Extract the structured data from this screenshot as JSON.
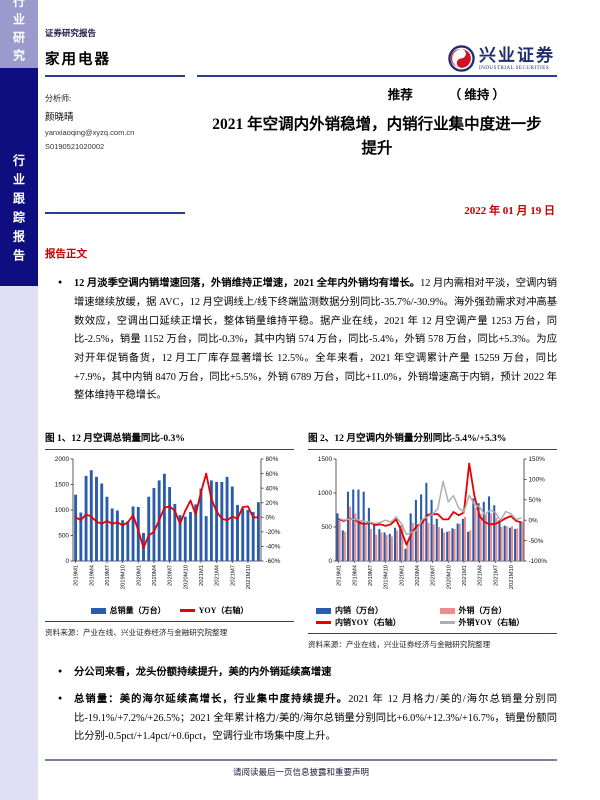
{
  "sidebar": {
    "top_label": "行业研究",
    "mid_label": "行业跟踪报告"
  },
  "header": {
    "report_type": "证券研究报告",
    "industry": "家用电器",
    "brand": {
      "name_cn": "兴业证券",
      "name_en": "INDUSTRIAL SECURITIES"
    },
    "rating": {
      "value": "推荐",
      "status": "（ 维持 ）"
    }
  },
  "analyst": {
    "label": "分析师:",
    "name": "颜晓晴",
    "email": "yanxiaoqing@xyzq.com.cn",
    "license": "S0190521020002"
  },
  "title": "2021 年空调内外销稳增，内销行业集中度进一步提升",
  "date": "2022 年 01 月 19 日",
  "section_label": "报告正文",
  "bullets_top": [
    {
      "lead": "12 月淡季空调内销增速回落，外销维持正增速，2021 全年内外销均有增长。",
      "rest": "12 月内需相对平淡，空调内销增速继续放缓，据 AVC，12 月空调线上/线下终端监测数据分别同比-35.7%/-30.9%。海外强劲需求对冲高基数效应，空调出口延续正增长，整体销量维持平稳。据产业在线，2021 年 12 月空调产量 1253 万台，同比-2.5%，销量 1152 万台，同比-0.3%，其中内销 574 万台，同比-5.4%，外销 578 万台，同比+5.3%。为应对开年促销备货，12 月工厂库存显著增长 12.5%。全年来看，2021 年空调累计产量 15259 万台，同比+7.9%，其中内销 8470 万台，同比+5.5%，外销 6789 万台，同比+11.0%，外销增速高于内销，预计 2022 年整体维持平稳增长。"
    }
  ],
  "bullets_bottom": [
    {
      "lead": "分公司来看，龙头份额持续提升，美的内外销延续高增速",
      "rest": ""
    },
    {
      "lead": "总销量：美的海尔延续高增长，行业集中度持续提升。",
      "rest": "2021 年 12 月格力/美的/海尔总销量分别同比-19.1%/+7.2%/+26.5%；2021 全年累计格力/美的/海尔总销量分别同比+6.0%/+12.3%/+16.7%，销量份额同比分别-0.5pct/+1.4pct/+0.6pct，空调行业市场集中度上升。"
    }
  ],
  "figures": [
    {
      "title": "图 1、12 月空调总销量同比-0.3%",
      "source": "资料来源：产业在线、兴业证券经济与金融研究院整理"
    },
    {
      "title": "图 2、12 月空调内外销量分别同比-5.4%/+5.3%",
      "source": "资料来源：产业在线，兴业证券经济与金融研究院整理"
    }
  ],
  "footer": "请阅读最后一页信息披露和重要声明",
  "colors": {
    "accent_navy": "#2b3990",
    "sidebar_dark": "#0e0e80",
    "sidebar_light": "#9a9bcc",
    "sidebar_pale": "#dfdff5",
    "red_text": "#c00000",
    "bar_blue": "#2a5caa",
    "bar_pink": "#ed8e8e",
    "line_red": "#e60000",
    "line_gray": "#aeaeae"
  },
  "chart_data": [
    {
      "type": "bar",
      "title": "图 1、12 月空调总销量同比-0.3%",
      "x": [
        "2019M1",
        "2019M2",
        "2019M3",
        "2019M4",
        "2019M5",
        "2019M6",
        "2019M7",
        "2019M8",
        "2019M9",
        "2019M10",
        "2019M11",
        "2019M12",
        "2020M1",
        "2020M2",
        "2020M3",
        "2020M4",
        "2020M5",
        "2020M6",
        "2020M7",
        "2020M8",
        "2020M9",
        "2020M10",
        "2020M11",
        "2020M12",
        "2021M1",
        "2021M2",
        "2021M3",
        "2021M4",
        "2021M5",
        "2021M6",
        "2021M7",
        "2021M8",
        "2021M9",
        "2021M10",
        "2021M11",
        "2021M12"
      ],
      "bar_series": [
        {
          "name": "总销量（万台）",
          "color": "#2a5caa",
          "axis": "left",
          "values": [
            1300,
            950,
            1670,
            1780,
            1650,
            1520,
            1260,
            1030,
            990,
            800,
            780,
            1070,
            1060,
            550,
            1260,
            1430,
            1580,
            1710,
            1450,
            1120,
            900,
            870,
            960,
            1110,
            1420,
            880,
            1580,
            1550,
            1550,
            1650,
            1460,
            1100,
            1030,
            1000,
            960,
            1152
          ]
        }
      ],
      "line_series": [
        {
          "name": "YOY（右轴）",
          "color": "#e60000",
          "axis": "right",
          "values": [
            0,
            -4,
            4,
            1,
            -6,
            -9,
            -5,
            -9,
            -7,
            -11,
            -7,
            3,
            -18,
            -42,
            -25,
            -20,
            -4,
            13,
            15,
            9,
            -9,
            9,
            23,
            4,
            34,
            60,
            25,
            8,
            -2,
            -4,
            1,
            -2,
            14,
            15,
            0,
            -0.3
          ]
        }
      ],
      "left_axis": {
        "min": 0,
        "max": 2000,
        "ticks": [
          0,
          500,
          1000,
          1500,
          2000
        ]
      },
      "right_axis": {
        "min": -60,
        "max": 80,
        "ticks": [
          80,
          60,
          40,
          20,
          0,
          -20,
          -40,
          -60
        ],
        "format": "percent"
      },
      "legend_position": "bottom",
      "grid": false
    },
    {
      "type": "bar",
      "title": "图 2、12 月空调内外销量分别同比-5.4%/+5.3%",
      "x": [
        "2019M1",
        "2019M2",
        "2019M3",
        "2019M4",
        "2019M5",
        "2019M6",
        "2019M7",
        "2019M8",
        "2019M9",
        "2019M10",
        "2019M11",
        "2019M12",
        "2020M1",
        "2020M2",
        "2020M3",
        "2020M4",
        "2020M5",
        "2020M6",
        "2020M7",
        "2020M8",
        "2020M9",
        "2020M10",
        "2020M11",
        "2020M12",
        "2021M1",
        "2021M2",
        "2021M3",
        "2021M4",
        "2021M5",
        "2021M6",
        "2021M7",
        "2021M8",
        "2021M9",
        "2021M10",
        "2021M11",
        "2021M12"
      ],
      "bar_series": [
        {
          "name": "内销（万台）",
          "color": "#2a5caa",
          "axis": "left",
          "values": [
            700,
            450,
            1020,
            1050,
            1050,
            1020,
            780,
            540,
            470,
            420,
            400,
            490,
            520,
            180,
            700,
            900,
            980,
            1150,
            900,
            620,
            480,
            430,
            480,
            550,
            620,
            430,
            920,
            850,
            870,
            950,
            820,
            600,
            520,
            490,
            470,
            574
          ]
        },
        {
          "name": "外销（万台）",
          "color": "#ed8e8e",
          "axis": "left",
          "values": [
            590,
            430,
            800,
            700,
            590,
            520,
            470,
            390,
            420,
            380,
            360,
            450,
            540,
            280,
            560,
            530,
            600,
            560,
            540,
            500,
            420,
            440,
            470,
            550,
            650,
            450,
            780,
            700,
            680,
            700,
            640,
            500,
            510,
            510,
            480,
            578
          ]
        }
      ],
      "line_series": [
        {
          "name": "内销YOY（右轴）",
          "color": "#e60000",
          "axis": "right",
          "values": [
            3,
            -2,
            4,
            2,
            -6,
            -10,
            -6,
            -12,
            -10,
            -14,
            -10,
            2,
            -26,
            -60,
            -31,
            -14,
            -7,
            13,
            15,
            15,
            2,
            2,
            20,
            12,
            19,
            139,
            60,
            10,
            -5,
            -10,
            -9,
            -3,
            5,
            10,
            -2,
            -5.4
          ]
        },
        {
          "name": "外销YOY（右轴）",
          "color": "#aeaeae",
          "axis": "right",
          "values": [
            5,
            0,
            3,
            2,
            0,
            -3,
            -5,
            -8,
            -5,
            0,
            -5,
            8,
            -8,
            -35,
            -30,
            -24,
            2,
            8,
            15,
            28,
            95,
            45,
            60,
            30,
            20,
            61,
            39,
            32,
            13,
            25,
            19,
            0,
            21,
            16,
            2,
            5.3
          ]
        }
      ],
      "left_axis": {
        "min": 0,
        "max": 1500,
        "ticks": [
          0,
          500,
          1000,
          1500
        ]
      },
      "right_axis": {
        "min": -100,
        "max": 150,
        "ticks": [
          150,
          100,
          50,
          0,
          -50,
          -100
        ],
        "format": "percent"
      },
      "legend_position": "bottom",
      "grid": false
    }
  ]
}
